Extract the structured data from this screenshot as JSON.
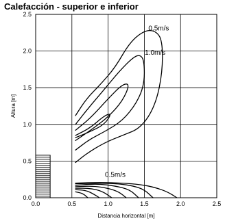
{
  "chart_data": {
    "type": "line",
    "title": "Calefacción - superior e inferior",
    "xlabel": "Distancia horizontal [m]",
    "ylabel": "Altura [m]",
    "xlim": [
      0,
      2.5
    ],
    "ylim": [
      0,
      2.5
    ],
    "xticks": [
      "0.0",
      "0.5",
      "1.0",
      "1.5",
      "2.0",
      "2.5"
    ],
    "yticks": [
      "0.0",
      "0.5",
      "1.0",
      "1.5",
      "2.0",
      "2.5"
    ],
    "grid": true,
    "unit": {
      "x": [
        0,
        0.2
      ],
      "y": [
        0,
        0.58
      ]
    },
    "series": [
      {
        "name": "0.5m/s",
        "points": [
          [
            0.55,
            1.12
          ],
          [
            0.7,
            1.35
          ],
          [
            0.9,
            1.55
          ],
          [
            1.1,
            1.78
          ],
          [
            1.3,
            2.12
          ],
          [
            1.5,
            2.28
          ],
          [
            1.65,
            2.28
          ],
          [
            1.75,
            2.15
          ],
          [
            1.75,
            1.7
          ],
          [
            1.65,
            1.25
          ],
          [
            1.45,
            0.95
          ],
          [
            1.2,
            0.85
          ],
          [
            0.95,
            0.75
          ],
          [
            0.7,
            0.6
          ],
          [
            0.55,
            0.48
          ]
        ]
      },
      {
        "name": "1.0m/s",
        "points": [
          [
            0.55,
            1.0
          ],
          [
            0.75,
            1.25
          ],
          [
            0.95,
            1.48
          ],
          [
            1.15,
            1.72
          ],
          [
            1.35,
            1.92
          ],
          [
            1.45,
            1.95
          ],
          [
            1.5,
            1.85
          ],
          [
            1.5,
            1.55
          ],
          [
            1.4,
            1.3
          ],
          [
            1.2,
            1.05
          ],
          [
            0.95,
            0.9
          ],
          [
            0.75,
            0.8
          ],
          [
            0.55,
            0.65
          ]
        ]
      },
      {
        "points": [
          [
            0.55,
            0.92
          ],
          [
            0.75,
            1.08
          ],
          [
            1.0,
            1.35
          ],
          [
            1.2,
            1.55
          ],
          [
            1.3,
            1.55
          ],
          [
            1.2,
            1.32
          ],
          [
            1.0,
            1.1
          ],
          [
            0.8,
            0.95
          ],
          [
            0.55,
            0.78
          ]
        ]
      },
      {
        "points": [
          [
            0.55,
            0.85
          ],
          [
            0.75,
            0.95
          ],
          [
            0.95,
            1.12
          ],
          [
            1.05,
            1.15
          ],
          [
            0.95,
            1.0
          ],
          [
            0.75,
            0.9
          ],
          [
            0.55,
            0.82
          ]
        ]
      },
      {
        "name": "0.5m/s",
        "points": [
          [
            0.55,
            0.2
          ],
          [
            0.9,
            0.21
          ],
          [
            1.2,
            0.2
          ],
          [
            1.45,
            0.18
          ],
          [
            1.65,
            0.14
          ],
          [
            1.82,
            0.08
          ],
          [
            1.95,
            0.0
          ]
        ]
      },
      {
        "points": [
          [
            0.55,
            0.19
          ],
          [
            0.9,
            0.2
          ],
          [
            1.15,
            0.19
          ],
          [
            1.35,
            0.16
          ],
          [
            1.5,
            0.11
          ],
          [
            1.62,
            0.0
          ]
        ]
      },
      {
        "points": [
          [
            0.55,
            0.17
          ],
          [
            0.85,
            0.19
          ],
          [
            1.1,
            0.16
          ],
          [
            1.3,
            0.11
          ],
          [
            1.42,
            0.0
          ]
        ]
      },
      {
        "points": [
          [
            0.55,
            0.15
          ],
          [
            0.8,
            0.16
          ],
          [
            1.0,
            0.13
          ],
          [
            1.15,
            0.08
          ],
          [
            1.25,
            0.0
          ]
        ]
      },
      {
        "points": [
          [
            0.55,
            0.13
          ],
          [
            0.75,
            0.13
          ],
          [
            0.92,
            0.09
          ],
          [
            1.05,
            0.0
          ]
        ]
      },
      {
        "points": [
          [
            0.55,
            0.11
          ],
          [
            0.7,
            0.1
          ],
          [
            0.8,
            0.05
          ],
          [
            0.88,
            0.0
          ]
        ]
      },
      {
        "points": [
          [
            0.55,
            0.08
          ],
          [
            0.65,
            0.06
          ],
          [
            0.72,
            0.0
          ]
        ]
      }
    ]
  }
}
